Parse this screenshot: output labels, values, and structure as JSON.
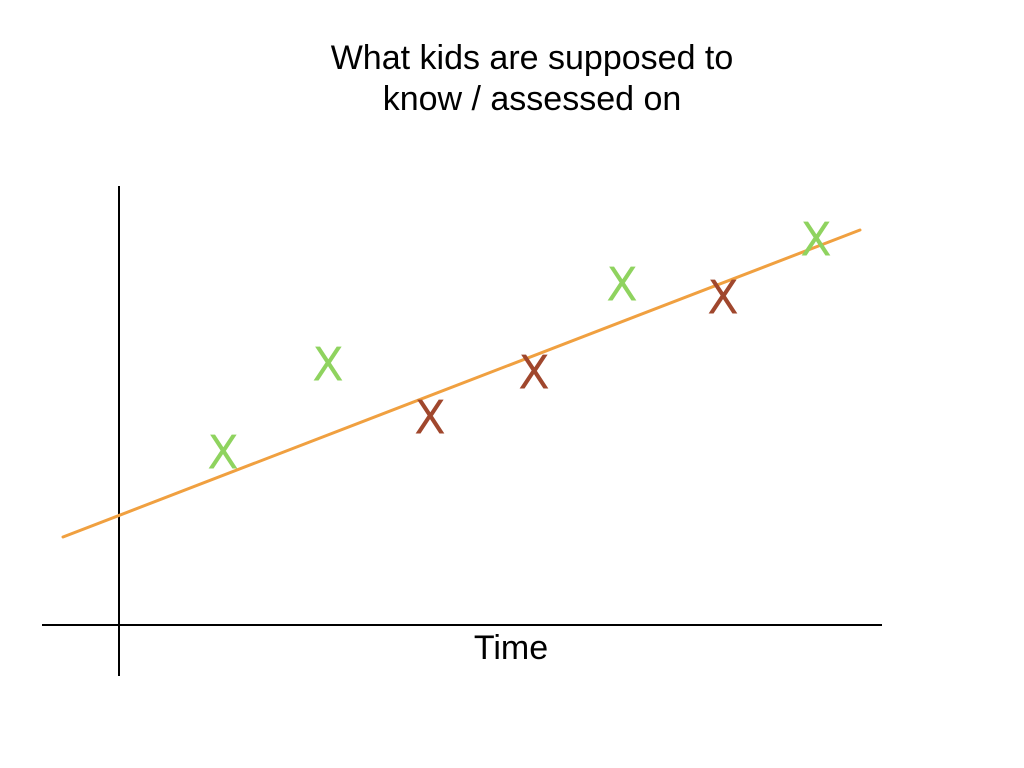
{
  "title": [
    "What kids are supposed to",
    "know / assessed on"
  ],
  "x_axis_label": "Time",
  "markers": [
    {
      "label": "X",
      "color": "#8fd35f"
    },
    {
      "label": "X",
      "color": "#8fd35f"
    },
    {
      "label": "X",
      "color": "#a0472d"
    },
    {
      "label": "X",
      "color": "#a0472d"
    },
    {
      "label": "X",
      "color": "#8fd35f"
    },
    {
      "label": "X",
      "color": "#a0472d"
    },
    {
      "label": "X",
      "color": "#8fd35f"
    }
  ]
}
